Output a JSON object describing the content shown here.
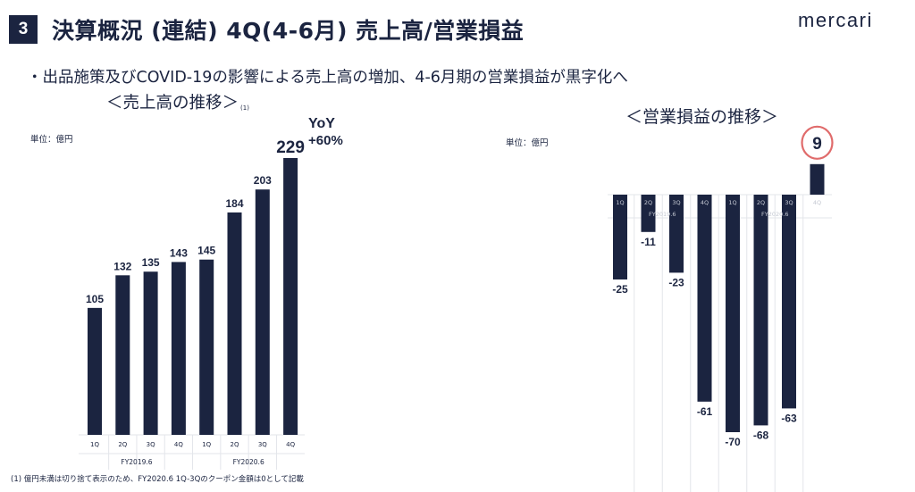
{
  "slide": {
    "number": "3",
    "title": "決算概況 (連結) 4Q(4-6月) 売上高/営業損益",
    "logo": "mercari",
    "bullet": "・出品施策及びCOVID-19の影響による売上高の増加、4-6月期の営業損益が黒字化へ",
    "footnote": "(1) 億円未満は切り捨て表示のため、FY2020.6 1Q-3Qのクーポン金額は0として記載"
  },
  "colors": {
    "bar": "#1b2440",
    "highlight": "#e06b6b",
    "grid": "#e3e5ea"
  },
  "chart_data": [
    {
      "type": "bar",
      "title": "＜売上高の推移＞",
      "title_note": "(1)",
      "unit": "単位：億円",
      "categories": [
        "1Q",
        "2Q",
        "3Q",
        "4Q",
        "1Q",
        "2Q",
        "3Q",
        "4Q"
      ],
      "groups": [
        {
          "label": "FY2019.6",
          "count": 4
        },
        {
          "label": "FY2020.6",
          "count": 4
        }
      ],
      "values": [
        105,
        132,
        135,
        143,
        145,
        184,
        203,
        229
      ],
      "ylim": [
        0,
        229
      ],
      "highlight_index": 7,
      "annotation": {
        "line1": "YoY",
        "line2": "+60%"
      }
    },
    {
      "type": "bar",
      "title": "＜営業損益の推移＞",
      "unit": "単位：億円",
      "categories": [
        "1Q",
        "2Q",
        "3Q",
        "4Q",
        "1Q",
        "2Q",
        "3Q",
        "4Q"
      ],
      "groups": [
        {
          "label": "FY2019.6",
          "count": 4
        },
        {
          "label": "FY2020.6",
          "count": 4
        }
      ],
      "values": [
        -25,
        -11,
        -23,
        -61,
        -70,
        -68,
        -63,
        9
      ],
      "ylim": [
        -70,
        9
      ],
      "highlight_index": 7
    }
  ]
}
